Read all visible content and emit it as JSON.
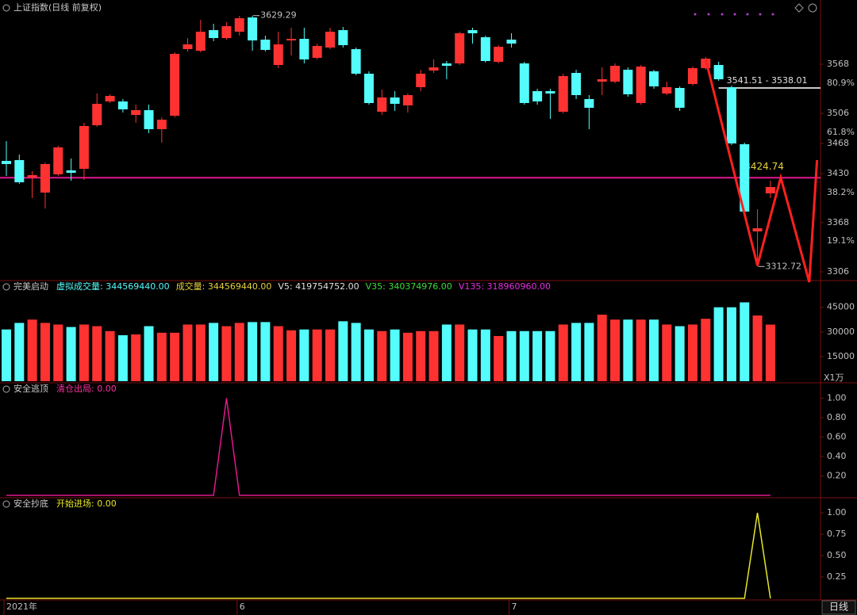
{
  "chart_data": [
    {
      "type": "candlestick",
      "title": "上证指数(日线 前复权)",
      "title_color": "#c8c8c8",
      "up_color": "#ff3232",
      "down_color": "#54fcfc",
      "open": [
        3446,
        3447,
        3425,
        3406,
        3429,
        3434,
        3436,
        3491,
        3521,
        3521,
        3504,
        3510,
        3486,
        3503,
        3587,
        3585,
        3611,
        3601,
        3609,
        3627,
        3599,
        3567,
        3598,
        3600,
        3576,
        3589,
        3611,
        3587,
        3556,
        3508,
        3526,
        3516,
        3539,
        3560,
        3569,
        3569,
        3611,
        3602,
        3571,
        3599,
        3569,
        3534,
        3534,
        3508,
        3557,
        3524,
        3546,
        3546,
        3561,
        3519,
        3559,
        3531,
        3538,
        3543,
        3563,
        3567,
        3539,
        3467,
        3357,
        3405
      ],
      "high": [
        3471,
        3454,
        3433,
        3444,
        3465,
        3449,
        3494,
        3531,
        3530,
        3524,
        3517,
        3517,
        3501,
        3583,
        3601,
        3624,
        3619,
        3621,
        3629,
        3629.29,
        3604,
        3609,
        3614,
        3614,
        3594,
        3614,
        3615,
        3589,
        3559,
        3536,
        3534,
        3531,
        3561,
        3574,
        3572,
        3609,
        3614,
        3604,
        3592,
        3607,
        3571,
        3537,
        3537,
        3556,
        3561,
        3529,
        3564,
        3569,
        3564,
        3567,
        3561,
        3546,
        3540,
        3565,
        3577,
        3571,
        3541,
        3469,
        3385,
        3421
      ],
      "low": [
        3427,
        3417,
        3399,
        3386,
        3427,
        3421,
        3422,
        3489,
        3519,
        3507,
        3494,
        3481,
        3469,
        3501,
        3584,
        3583,
        3597,
        3599,
        3604,
        3585,
        3584,
        3563,
        3579,
        3569,
        3574,
        3587,
        3589,
        3554,
        3517,
        3504,
        3509,
        3507,
        3534,
        3557,
        3549,
        3567,
        3594,
        3570,
        3569,
        3589,
        3517,
        3517,
        3499,
        3506,
        3524,
        3486,
        3529,
        3544,
        3527,
        3517,
        3537,
        3529,
        3509,
        3541,
        3561,
        3547,
        3466,
        3380,
        3312.72,
        3399
      ],
      "close": [
        3442,
        3419,
        3428,
        3442,
        3463,
        3431,
        3490,
        3518,
        3528,
        3511,
        3510,
        3486,
        3498,
        3581,
        3593,
        3609,
        3601,
        3616,
        3626,
        3598,
        3586,
        3593,
        3600,
        3574,
        3591,
        3609,
        3592,
        3556,
        3519,
        3526,
        3518,
        3529,
        3556,
        3564,
        3566,
        3607,
        3607,
        3572,
        3590,
        3594,
        3519,
        3521,
        3531,
        3553,
        3529,
        3513,
        3549,
        3566,
        3530,
        3565,
        3540,
        3539,
        3513,
        3563,
        3575,
        3549,
        3468,
        3382,
        3361,
        3413
      ],
      "ylim": [
        3297,
        3649
      ],
      "yticks": [
        3568,
        3506,
        3468,
        3430,
        3368,
        3306
      ],
      "fib_levels": [
        {
          "value": 3556,
          "label": "80.9%"
        },
        {
          "value": 3494,
          "label": "61.8%"
        },
        {
          "value": 3418,
          "label": "38.2%"
        },
        {
          "value": 3357,
          "label": "19.1%"
        }
      ],
      "annotations": [
        {
          "index": 19,
          "value": 3629.29
        },
        {
          "index": 58,
          "value": 3312.72
        }
      ],
      "hline": {
        "value": 3424.74,
        "color": "#e0188c",
        "label_color": "#e6d23c",
        "label_index": 57
      },
      "range_line": {
        "value": 3538.01,
        "label": "3541.51 - 3538.01",
        "start_index": 55,
        "color": "#c8c8c8"
      },
      "zigzag": {
        "x": [
          54,
          58,
          59.8,
          62,
          62.6
        ],
        "values": [
          3574,
          3314,
          3425,
          3293,
          3447
        ],
        "color": "#ff2020"
      }
    },
    {
      "type": "bar",
      "title": "完美启动",
      "title_color": "#c8c8c8",
      "legend": [
        {
          "text": "虚拟成交量: 344569440.00",
          "color": "#54fcfc"
        },
        {
          "text": "成交量: 344569440.00",
          "color": "#e6d23c"
        },
        {
          "text": "V5: 419754752.00",
          "color": "#e0e0e0"
        },
        {
          "text": "V35: 340374976.00",
          "color": "#3cdc3c"
        },
        {
          "text": "V135: 318960960.00",
          "color": "#e030e0"
        }
      ],
      "values": [
        31500,
        35500,
        37500,
        35500,
        34500,
        33000,
        34500,
        33500,
        30500,
        28000,
        28500,
        33500,
        29500,
        29500,
        34500,
        34500,
        35500,
        33500,
        35500,
        36000,
        36000,
        33500,
        31000,
        31500,
        31500,
        31500,
        36500,
        35500,
        31500,
        30500,
        31500,
        29500,
        30500,
        30500,
        34500,
        34500,
        31500,
        31500,
        27500,
        30500,
        30500,
        30500,
        30500,
        34500,
        35500,
        35500,
        40500,
        37500,
        37500,
        37500,
        37500,
        34500,
        33500,
        34500,
        38000,
        45000,
        45000,
        48000,
        40000,
        34457
      ],
      "up_color": "#ff3232",
      "down_color": "#54fcfc",
      "ylim": [
        0,
        55000
      ],
      "yticks": [
        45000,
        30000,
        15000
      ],
      "unit": "X1万"
    },
    {
      "type": "line",
      "title": "安全逃顶",
      "title_color": "#c8c8c8",
      "legend": [
        {
          "text": "清仓出局: 0.00",
          "color": "#ff30a0"
        }
      ],
      "color": "#e0188c",
      "values": [
        0,
        0,
        0,
        0,
        0,
        0,
        0,
        0,
        0,
        0,
        0,
        0,
        0,
        0,
        0,
        0,
        0,
        1,
        0,
        0,
        0,
        0,
        0,
        0,
        0,
        0,
        0,
        0,
        0,
        0,
        0,
        0,
        0,
        0,
        0,
        0,
        0,
        0,
        0,
        0,
        0,
        0,
        0,
        0,
        0,
        0,
        0,
        0,
        0,
        0,
        0,
        0,
        0,
        0,
        0,
        0,
        0,
        0,
        0,
        0
      ],
      "ylim": [
        0,
        1.15
      ],
      "yticks": [
        {
          "value": 1,
          "label": "1.00"
        },
        {
          "value": 0.8,
          "label": "0.80"
        },
        {
          "value": 0.6,
          "label": "0.60"
        },
        {
          "value": 0.4,
          "label": "0.40"
        },
        {
          "value": 0.2,
          "label": "0.20"
        }
      ]
    },
    {
      "type": "line",
      "title": "安全抄底",
      "title_color": "#c8c8c8",
      "legend": [
        {
          "text": "开始进场: 0.00",
          "color": "#e6e628"
        }
      ],
      "color": "#e6e628",
      "values": [
        0,
        0,
        0,
        0,
        0,
        0,
        0,
        0,
        0,
        0,
        0,
        0,
        0,
        0,
        0,
        0,
        0,
        0,
        0,
        0,
        0,
        0,
        0,
        0,
        0,
        0,
        0,
        0,
        0,
        0,
        0,
        0,
        0,
        0,
        0,
        0,
        0,
        0,
        0,
        0,
        0,
        0,
        0,
        0,
        0,
        0,
        0,
        0,
        0,
        0,
        0,
        0,
        0,
        0,
        0,
        0,
        0,
        0,
        1,
        0
      ],
      "ylim": [
        0,
        1.15
      ],
      "yticks": [
        {
          "value": 1,
          "label": "1.00"
        },
        {
          "value": 0.75,
          "label": "0.75"
        },
        {
          "value": 0.5,
          "label": "0.50"
        },
        {
          "value": 0.25,
          "label": "0.25"
        }
      ],
      "x_tick_labels": [
        {
          "index": 0,
          "label": "2021年"
        },
        {
          "index": 18,
          "label": "6"
        },
        {
          "index": 39,
          "label": "7"
        }
      ],
      "period": "日线"
    }
  ]
}
